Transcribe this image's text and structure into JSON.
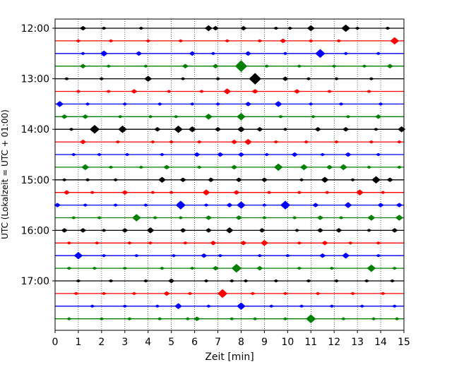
{
  "chart_data": {
    "type": "line",
    "title": "",
    "xlabel": "Zeit  [min]",
    "ylabel": "UTC (Lokalzeit = UTC + 01:00)",
    "xlim": [
      0,
      15
    ],
    "x_ticks": [
      "0",
      "1",
      "2",
      "3",
      "4",
      "5",
      "6",
      "7",
      "8",
      "9",
      "10",
      "11",
      "12",
      "13",
      "14",
      "15"
    ],
    "y_ticks": [
      {
        "label": "12:00",
        "row": 0
      },
      {
        "label": "13:00",
        "row": 4
      },
      {
        "label": "14:00",
        "row": 8
      },
      {
        "label": "15:00",
        "row": 12
      },
      {
        "label": "16:00",
        "row": 16
      },
      {
        "label": "17:00",
        "row": 20
      }
    ],
    "grid": "vertical dotted at each minute",
    "series_colors": [
      "#000000",
      "#ff0000",
      "#0000ff",
      "#008000"
    ],
    "series": [
      {
        "start": "12:00",
        "events": [
          [
            1.2,
            3
          ],
          [
            2.1,
            2
          ],
          [
            3.7,
            2
          ],
          [
            6.6,
            4
          ],
          [
            6.9,
            3
          ],
          [
            8.1,
            3
          ],
          [
            9.5,
            2
          ],
          [
            10.1,
            2
          ],
          [
            11.0,
            4
          ],
          [
            12.5,
            5
          ],
          [
            13.0,
            2
          ],
          [
            14.3,
            2
          ]
        ]
      },
      {
        "start": "12:15",
        "events": [
          [
            1.0,
            2
          ],
          [
            2.4,
            2
          ],
          [
            4.0,
            2
          ],
          [
            5.4,
            2
          ],
          [
            7.4,
            2
          ],
          [
            8.8,
            2
          ],
          [
            9.8,
            3
          ],
          [
            11.0,
            2
          ],
          [
            12.2,
            2
          ],
          [
            14.6,
            5
          ]
        ]
      },
      {
        "start": "12:30",
        "events": [
          [
            1.2,
            2
          ],
          [
            2.1,
            4
          ],
          [
            3.6,
            3
          ],
          [
            5.9,
            3
          ],
          [
            6.8,
            2
          ],
          [
            8.3,
            3
          ],
          [
            9.9,
            2
          ],
          [
            11.4,
            6
          ],
          [
            12.5,
            2
          ],
          [
            13.9,
            2
          ]
        ]
      },
      {
        "start": "12:45",
        "events": [
          [
            1.2,
            3
          ],
          [
            2.3,
            2
          ],
          [
            3.9,
            2
          ],
          [
            5.6,
            3
          ],
          [
            6.9,
            3
          ],
          [
            8.0,
            8
          ],
          [
            9.1,
            2
          ],
          [
            10.5,
            2
          ],
          [
            12.0,
            2
          ],
          [
            13.3,
            2
          ],
          [
            14.4,
            3
          ]
        ]
      },
      {
        "start": "13:00",
        "events": [
          [
            0.5,
            2
          ],
          [
            2.0,
            2
          ],
          [
            4.0,
            4
          ],
          [
            5.5,
            2
          ],
          [
            7.0,
            2
          ],
          [
            8.6,
            8
          ],
          [
            9.9,
            3
          ],
          [
            10.9,
            2
          ],
          [
            12.1,
            2
          ],
          [
            13.6,
            2
          ]
        ]
      },
      {
        "start": "13:15",
        "events": [
          [
            1.0,
            2
          ],
          [
            2.3,
            2
          ],
          [
            3.4,
            3
          ],
          [
            4.9,
            2
          ],
          [
            6.3,
            2
          ],
          [
            7.4,
            4
          ],
          [
            8.6,
            3
          ],
          [
            10.4,
            3
          ],
          [
            11.8,
            2
          ],
          [
            13.5,
            2
          ]
        ]
      },
      {
        "start": "13:30",
        "events": [
          [
            0.2,
            4
          ],
          [
            1.4,
            2
          ],
          [
            3.0,
            2
          ],
          [
            4.5,
            2
          ],
          [
            5.9,
            2
          ],
          [
            7.0,
            2
          ],
          [
            8.3,
            3
          ],
          [
            9.6,
            4
          ],
          [
            11.0,
            2
          ],
          [
            12.3,
            2
          ],
          [
            14.0,
            2
          ]
        ]
      },
      {
        "start": "13:45",
        "events": [
          [
            0.4,
            3
          ],
          [
            1.3,
            3
          ],
          [
            2.8,
            2
          ],
          [
            4.1,
            2
          ],
          [
            5.2,
            2
          ],
          [
            6.6,
            4
          ],
          [
            8.0,
            5
          ],
          [
            9.7,
            2
          ],
          [
            11.1,
            2
          ],
          [
            12.6,
            2
          ],
          [
            13.9,
            3
          ]
        ]
      },
      {
        "start": "14:00",
        "events": [
          [
            0.7,
            2
          ],
          [
            1.7,
            6
          ],
          [
            2.9,
            5
          ],
          [
            4.4,
            3
          ],
          [
            5.3,
            5
          ],
          [
            5.9,
            4
          ],
          [
            7.0,
            3
          ],
          [
            8.0,
            4
          ],
          [
            8.8,
            3
          ],
          [
            9.9,
            2
          ],
          [
            11.3,
            3
          ],
          [
            12.5,
            3
          ],
          [
            13.8,
            2
          ],
          [
            14.9,
            4
          ]
        ]
      },
      {
        "start": "14:15",
        "events": [
          [
            1.2,
            3
          ],
          [
            2.7,
            2
          ],
          [
            4.2,
            2
          ],
          [
            5.0,
            2
          ],
          [
            6.2,
            2
          ],
          [
            7.7,
            3
          ],
          [
            8.3,
            4
          ],
          [
            9.5,
            2
          ],
          [
            10.8,
            2
          ],
          [
            12.1,
            2
          ],
          [
            13.6,
            2
          ],
          [
            14.8,
            2
          ]
        ]
      },
      {
        "start": "14:30",
        "events": [
          [
            0.8,
            2
          ],
          [
            1.9,
            2
          ],
          [
            3.1,
            2
          ],
          [
            4.6,
            2
          ],
          [
            6.1,
            3
          ],
          [
            7.1,
            3
          ],
          [
            8.0,
            3
          ],
          [
            9.1,
            2
          ],
          [
            10.3,
            3
          ],
          [
            11.5,
            2
          ],
          [
            12.6,
            3
          ],
          [
            13.9,
            2
          ]
        ]
      },
      {
        "start": "14:45",
        "events": [
          [
            1.3,
            4
          ],
          [
            2.4,
            2
          ],
          [
            3.7,
            2
          ],
          [
            4.8,
            3
          ],
          [
            6.2,
            2
          ],
          [
            7.7,
            3
          ],
          [
            9.6,
            5
          ],
          [
            10.7,
            4
          ],
          [
            11.8,
            3
          ],
          [
            12.4,
            4
          ],
          [
            13.5,
            2
          ],
          [
            14.8,
            2
          ]
        ]
      },
      {
        "start": "15:00",
        "events": [
          [
            0.4,
            2
          ],
          [
            1.4,
            2
          ],
          [
            2.6,
            2
          ],
          [
            4.6,
            4
          ],
          [
            5.5,
            3
          ],
          [
            6.7,
            3
          ],
          [
            7.9,
            3
          ],
          [
            9.0,
            3
          ],
          [
            10.6,
            2
          ],
          [
            11.6,
            4
          ],
          [
            12.8,
            2
          ],
          [
            13.8,
            5
          ],
          [
            14.4,
            3
          ]
        ]
      },
      {
        "start": "15:15",
        "events": [
          [
            0.5,
            3
          ],
          [
            1.6,
            2
          ],
          [
            3.0,
            3
          ],
          [
            4.2,
            2
          ],
          [
            5.0,
            2
          ],
          [
            6.5,
            4
          ],
          [
            7.8,
            3
          ],
          [
            9.2,
            2
          ],
          [
            10.5,
            2
          ],
          [
            11.7,
            2
          ],
          [
            13.1,
            4
          ],
          [
            14.1,
            2
          ]
        ]
      },
      {
        "start": "15:30",
        "events": [
          [
            0.1,
            3
          ],
          [
            1.3,
            2
          ],
          [
            2.6,
            2
          ],
          [
            3.9,
            2
          ],
          [
            5.4,
            6
          ],
          [
            6.5,
            2
          ],
          [
            7.5,
            3
          ],
          [
            8.0,
            5
          ],
          [
            9.0,
            2
          ],
          [
            9.9,
            6
          ],
          [
            11.2,
            3
          ],
          [
            12.6,
            4
          ],
          [
            14.0,
            3
          ],
          [
            14.8,
            3
          ]
        ]
      },
      {
        "start": "15:45",
        "events": [
          [
            0.8,
            2
          ],
          [
            1.9,
            2
          ],
          [
            3.5,
            5
          ],
          [
            4.3,
            2
          ],
          [
            5.4,
            2
          ],
          [
            6.6,
            3
          ],
          [
            7.9,
            3
          ],
          [
            9.0,
            2
          ],
          [
            10.3,
            2
          ],
          [
            11.4,
            3
          ],
          [
            12.3,
            2
          ],
          [
            13.6,
            4
          ],
          [
            14.8,
            4
          ]
        ]
      },
      {
        "start": "16:00",
        "events": [
          [
            0.4,
            3
          ],
          [
            1.2,
            3
          ],
          [
            2.1,
            2
          ],
          [
            3.0,
            3
          ],
          [
            4.1,
            4
          ],
          [
            5.5,
            3
          ],
          [
            6.6,
            3
          ],
          [
            7.5,
            4
          ],
          [
            8.9,
            3
          ],
          [
            10.4,
            2
          ],
          [
            11.4,
            3
          ],
          [
            12.2,
            3
          ],
          [
            13.5,
            2
          ],
          [
            14.6,
            3
          ]
        ]
      },
      {
        "start": "16:15",
        "events": [
          [
            0.6,
            2
          ],
          [
            1.8,
            2
          ],
          [
            3.2,
            2
          ],
          [
            4.1,
            2
          ],
          [
            5.6,
            2
          ],
          [
            6.8,
            3
          ],
          [
            8.1,
            3
          ],
          [
            9.0,
            4
          ],
          [
            10.5,
            2
          ],
          [
            11.6,
            3
          ],
          [
            12.7,
            2
          ],
          [
            13.9,
            2
          ]
        ]
      },
      {
        "start": "16:30",
        "events": [
          [
            1.0,
            5
          ],
          [
            2.1,
            2
          ],
          [
            3.5,
            2
          ],
          [
            5.1,
            2
          ],
          [
            6.4,
            3
          ],
          [
            7.1,
            2
          ],
          [
            8.8,
            2
          ],
          [
            10.0,
            2
          ],
          [
            11.5,
            3
          ],
          [
            12.5,
            4
          ],
          [
            13.9,
            2
          ]
        ]
      },
      {
        "start": "16:45",
        "events": [
          [
            0.6,
            2
          ],
          [
            1.7,
            2
          ],
          [
            3.0,
            2
          ],
          [
            4.6,
            2
          ],
          [
            5.9,
            2
          ],
          [
            6.9,
            3
          ],
          [
            7.8,
            6
          ],
          [
            8.8,
            3
          ],
          [
            10.5,
            2
          ],
          [
            11.9,
            2
          ],
          [
            13.6,
            5
          ],
          [
            14.6,
            2
          ]
        ]
      },
      {
        "start": "17:00",
        "events": [
          [
            1.0,
            2
          ],
          [
            2.4,
            2
          ],
          [
            3.9,
            2
          ],
          [
            5.0,
            3
          ],
          [
            6.5,
            2
          ],
          [
            7.6,
            2
          ],
          [
            8.2,
            2
          ],
          [
            9.5,
            2
          ],
          [
            10.9,
            2
          ],
          [
            12.1,
            2
          ],
          [
            13.4,
            2
          ],
          [
            14.5,
            2
          ]
        ]
      },
      {
        "start": "17:15",
        "events": [
          [
            0.9,
            2
          ],
          [
            2.1,
            2
          ],
          [
            3.4,
            2
          ],
          [
            4.8,
            3
          ],
          [
            5.8,
            2
          ],
          [
            7.2,
            6
          ],
          [
            8.5,
            2
          ],
          [
            9.9,
            2
          ],
          [
            11.3,
            2
          ],
          [
            12.8,
            2
          ],
          [
            14.1,
            2
          ]
        ]
      },
      {
        "start": "17:30",
        "events": [
          [
            1.6,
            2
          ],
          [
            3.0,
            2
          ],
          [
            4.4,
            2
          ],
          [
            5.3,
            4
          ],
          [
            6.6,
            2
          ],
          [
            8.0,
            5
          ],
          [
            9.3,
            2
          ],
          [
            10.6,
            2
          ],
          [
            11.9,
            2
          ],
          [
            13.2,
            2
          ],
          [
            14.6,
            2
          ]
        ]
      },
      {
        "start": "17:45",
        "events": [
          [
            0.6,
            2
          ],
          [
            2.0,
            2
          ],
          [
            3.2,
            2
          ],
          [
            4.5,
            2
          ],
          [
            5.7,
            2
          ],
          [
            6.1,
            3
          ],
          [
            7.6,
            2
          ],
          [
            8.6,
            2
          ],
          [
            9.9,
            2
          ],
          [
            11.0,
            6
          ],
          [
            12.4,
            2
          ],
          [
            13.7,
            2
          ],
          [
            14.7,
            2
          ]
        ]
      }
    ]
  }
}
